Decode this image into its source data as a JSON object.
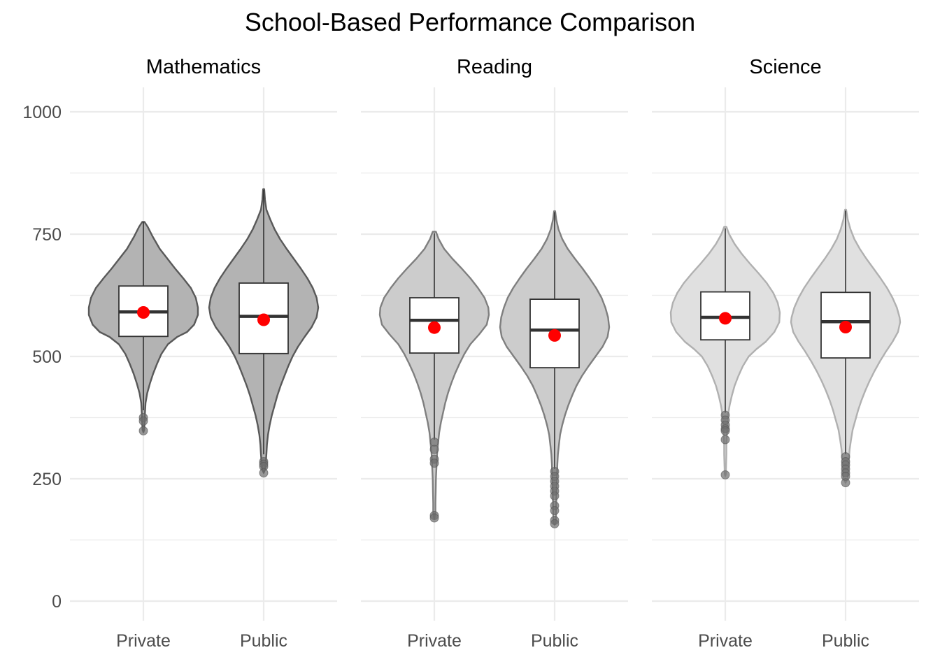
{
  "chart_data": {
    "type": "violin",
    "title": "School-Based Performance Comparison",
    "xlabel": "",
    "ylabel": "",
    "ylim": [
      -40,
      1050
    ],
    "y_ticks": [
      0,
      250,
      500,
      750,
      1000
    ],
    "y_tick_labels": [
      "0",
      "250",
      "500",
      "750",
      "1000"
    ],
    "categories": [
      "Private",
      "Public"
    ],
    "grid": true,
    "legend": "none",
    "colors": {
      "Mathematics": {
        "fill": "#b3b3b3",
        "stroke": "#595959"
      },
      "Reading": {
        "fill": "#cccccc",
        "stroke": "#7f7f7f"
      },
      "Science": {
        "fill": "#e0e0e0",
        "stroke": "#b0b0b0"
      },
      "mean_point": "#ff0000",
      "outlier": "#6e6e6e",
      "grid": "#ebebeb"
    },
    "panels": [
      {
        "name": "Mathematics",
        "groups": [
          {
            "category": "Private",
            "min_whisker": 390,
            "q1": 541,
            "median": 591,
            "q3": 644,
            "max_whisker": 775,
            "mean": 590,
            "outliers": [
              375,
              368,
              348
            ],
            "violin_profile": [
              [
                775,
                0.02
              ],
              [
                765,
                0.08
              ],
              [
                745,
                0.17
              ],
              [
                720,
                0.3
              ],
              [
                700,
                0.44
              ],
              [
                680,
                0.58
              ],
              [
                660,
                0.73
              ],
              [
                640,
                0.87
              ],
              [
                620,
                0.96
              ],
              [
                600,
                1.0
              ],
              [
                585,
                1.0
              ],
              [
                565,
                0.93
              ],
              [
                550,
                0.8
              ],
              [
                540,
                0.62
              ],
              [
                525,
                0.45
              ],
              [
                505,
                0.33
              ],
              [
                485,
                0.25
              ],
              [
                465,
                0.18
              ],
              [
                445,
                0.12
              ],
              [
                425,
                0.07
              ],
              [
                405,
                0.04
              ],
              [
                385,
                0.03
              ],
              [
                370,
                0.025
              ],
              [
                350,
                0.015
              ],
              [
                345,
                0
              ]
            ]
          },
          {
            "category": "Public",
            "min_whisker": 300,
            "q1": 506,
            "median": 582,
            "q3": 650,
            "max_whisker": 840,
            "mean": 575,
            "outliers": [
              285,
              280,
              275,
              262
            ],
            "violin_profile": [
              [
                842,
                0.01
              ],
              [
                820,
                0.025
              ],
              [
                800,
                0.05
              ],
              [
                780,
                0.12
              ],
              [
                760,
                0.2
              ],
              [
                740,
                0.3
              ],
              [
                720,
                0.42
              ],
              [
                700,
                0.55
              ],
              [
                680,
                0.68
              ],
              [
                660,
                0.8
              ],
              [
                640,
                0.9
              ],
              [
                620,
                0.97
              ],
              [
                600,
                1.0
              ],
              [
                580,
                0.97
              ],
              [
                560,
                0.88
              ],
              [
                540,
                0.75
              ],
              [
                520,
                0.63
              ],
              [
                500,
                0.53
              ],
              [
                480,
                0.45
              ],
              [
                460,
                0.38
              ],
              [
                440,
                0.31
              ],
              [
                420,
                0.25
              ],
              [
                400,
                0.2
              ],
              [
                380,
                0.15
              ],
              [
                360,
                0.11
              ],
              [
                340,
                0.08
              ],
              [
                320,
                0.06
              ],
              [
                300,
                0.05
              ],
              [
                285,
                0.04
              ],
              [
                270,
                0.03
              ],
              [
                262,
                0
              ]
            ]
          }
        ]
      },
      {
        "name": "Reading",
        "groups": [
          {
            "category": "Private",
            "min_whisker": 330,
            "q1": 507,
            "median": 574,
            "q3": 620,
            "max_whisker": 752,
            "mean": 559,
            "outliers": [
              325,
              310,
              290,
              282,
              175,
              170
            ],
            "violin_profile": [
              [
                755,
                0.03
              ],
              [
                740,
                0.08
              ],
              [
                720,
                0.18
              ],
              [
                700,
                0.33
              ],
              [
                680,
                0.5
              ],
              [
                660,
                0.66
              ],
              [
                640,
                0.8
              ],
              [
                620,
                0.92
              ],
              [
                600,
                0.99
              ],
              [
                585,
                1.0
              ],
              [
                565,
                0.96
              ],
              [
                545,
                0.82
              ],
              [
                525,
                0.66
              ],
              [
                505,
                0.55
              ],
              [
                485,
                0.46
              ],
              [
                465,
                0.38
              ],
              [
                445,
                0.31
              ],
              [
                425,
                0.25
              ],
              [
                405,
                0.2
              ],
              [
                385,
                0.16
              ],
              [
                365,
                0.12
              ],
              [
                345,
                0.09
              ],
              [
                325,
                0.07
              ],
              [
                300,
                0.05
              ],
              [
                275,
                0.04
              ],
              [
                250,
                0.03
              ],
              [
                225,
                0.025
              ],
              [
                200,
                0.02
              ],
              [
                180,
                0.02
              ],
              [
                168,
                0
              ]
            ]
          },
          {
            "category": "Public",
            "min_whisker": 270,
            "q1": 477,
            "median": 554,
            "q3": 617,
            "max_whisker": 795,
            "mean": 543,
            "outliers": [
              265,
              255,
              245,
              235,
              225,
              215,
              195,
              185,
              165,
              158
            ],
            "violin_profile": [
              [
                797,
                0.01
              ],
              [
                780,
                0.03
              ],
              [
                760,
                0.07
              ],
              [
                740,
                0.14
              ],
              [
                720,
                0.24
              ],
              [
                700,
                0.37
              ],
              [
                680,
                0.51
              ],
              [
                660,
                0.64
              ],
              [
                640,
                0.76
              ],
              [
                620,
                0.86
              ],
              [
                600,
                0.93
              ],
              [
                580,
                0.98
              ],
              [
                560,
                1.0
              ],
              [
                540,
                0.97
              ],
              [
                520,
                0.88
              ],
              [
                500,
                0.75
              ],
              [
                480,
                0.62
              ],
              [
                460,
                0.5
              ],
              [
                440,
                0.4
              ],
              [
                420,
                0.32
              ],
              [
                400,
                0.25
              ],
              [
                380,
                0.19
              ],
              [
                360,
                0.14
              ],
              [
                340,
                0.1
              ],
              [
                320,
                0.08
              ],
              [
                300,
                0.06
              ],
              [
                280,
                0.05
              ],
              [
                260,
                0.045
              ],
              [
                240,
                0.04
              ],
              [
                220,
                0.035
              ],
              [
                200,
                0.03
              ],
              [
                180,
                0.025
              ],
              [
                160,
                0.02
              ],
              [
                156,
                0
              ]
            ]
          }
        ]
      },
      {
        "name": "Science",
        "groups": [
          {
            "category": "Private",
            "min_whisker": 385,
            "q1": 534,
            "median": 580,
            "q3": 632,
            "max_whisker": 762,
            "mean": 578,
            "outliers": [
              380,
              370,
              360,
              352,
              348,
              330,
              258
            ],
            "violin_profile": [
              [
                765,
                0.02
              ],
              [
                750,
                0.07
              ],
              [
                730,
                0.17
              ],
              [
                710,
                0.3
              ],
              [
                690,
                0.45
              ],
              [
                670,
                0.61
              ],
              [
                650,
                0.76
              ],
              [
                630,
                0.88
              ],
              [
                610,
                0.96
              ],
              [
                590,
                1.0
              ],
              [
                570,
                0.99
              ],
              [
                550,
                0.9
              ],
              [
                530,
                0.74
              ],
              [
                515,
                0.57
              ],
              [
                500,
                0.43
              ],
              [
                480,
                0.32
              ],
              [
                460,
                0.24
              ],
              [
                440,
                0.17
              ],
              [
                420,
                0.12
              ],
              [
                400,
                0.08
              ],
              [
                380,
                0.05
              ],
              [
                360,
                0.04
              ],
              [
                340,
                0.03
              ],
              [
                320,
                0.02
              ],
              [
                300,
                0.02
              ],
              [
                280,
                0.015
              ],
              [
                260,
                0.01
              ],
              [
                256,
                0
              ]
            ]
          },
          {
            "category": "Public",
            "min_whisker": 300,
            "q1": 497,
            "median": 571,
            "q3": 631,
            "max_whisker": 798,
            "mean": 560,
            "outliers": [
              295,
              285,
              278,
              270,
              262,
              255,
              242
            ],
            "violin_profile": [
              [
                800,
                0.01
              ],
              [
                780,
                0.04
              ],
              [
                760,
                0.09
              ],
              [
                740,
                0.16
              ],
              [
                720,
                0.26
              ],
              [
                700,
                0.38
              ],
              [
                680,
                0.51
              ],
              [
                660,
                0.64
              ],
              [
                640,
                0.76
              ],
              [
                620,
                0.86
              ],
              [
                600,
                0.94
              ],
              [
                580,
                0.99
              ],
              [
                570,
                1.0
              ],
              [
                550,
                0.96
              ],
              [
                530,
                0.86
              ],
              [
                510,
                0.74
              ],
              [
                490,
                0.63
              ],
              [
                470,
                0.53
              ],
              [
                450,
                0.44
              ],
              [
                430,
                0.36
              ],
              [
                410,
                0.29
              ],
              [
                390,
                0.23
              ],
              [
                370,
                0.18
              ],
              [
                350,
                0.13
              ],
              [
                330,
                0.1
              ],
              [
                310,
                0.075
              ],
              [
                290,
                0.06
              ],
              [
                270,
                0.05
              ],
              [
                250,
                0.04
              ],
              [
                242,
                0
              ]
            ]
          }
        ]
      }
    ]
  }
}
